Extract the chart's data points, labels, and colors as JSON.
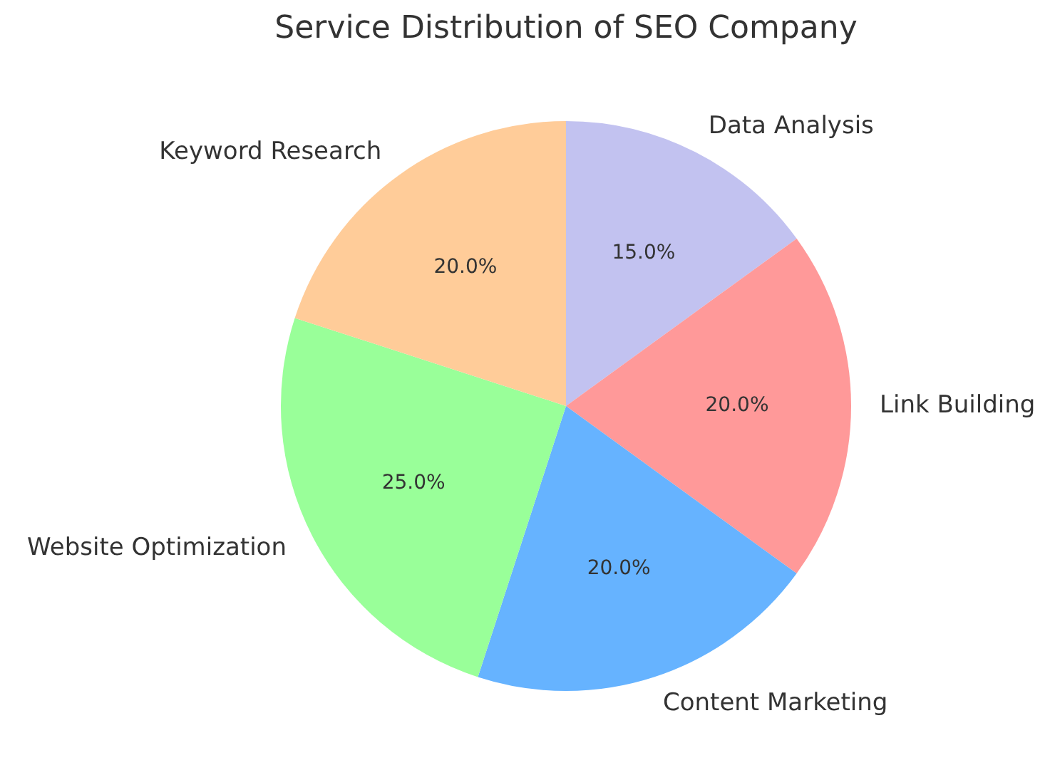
{
  "chart_data": {
    "type": "pie",
    "title": "Service Distribution of SEO Company",
    "categories": [
      "Data Analysis",
      "Link Building",
      "Content Marketing",
      "Website Optimization",
      "Keyword Research"
    ],
    "values": [
      15,
      20,
      20,
      25,
      20
    ],
    "colors": [
      "#c2c2f0",
      "#ff9999",
      "#66b3ff",
      "#99ff99",
      "#ffcc99"
    ],
    "value_labels": [
      "15.0%",
      "20.0%",
      "20.0%",
      "25.0%",
      "20.0%"
    ],
    "legend": false
  }
}
